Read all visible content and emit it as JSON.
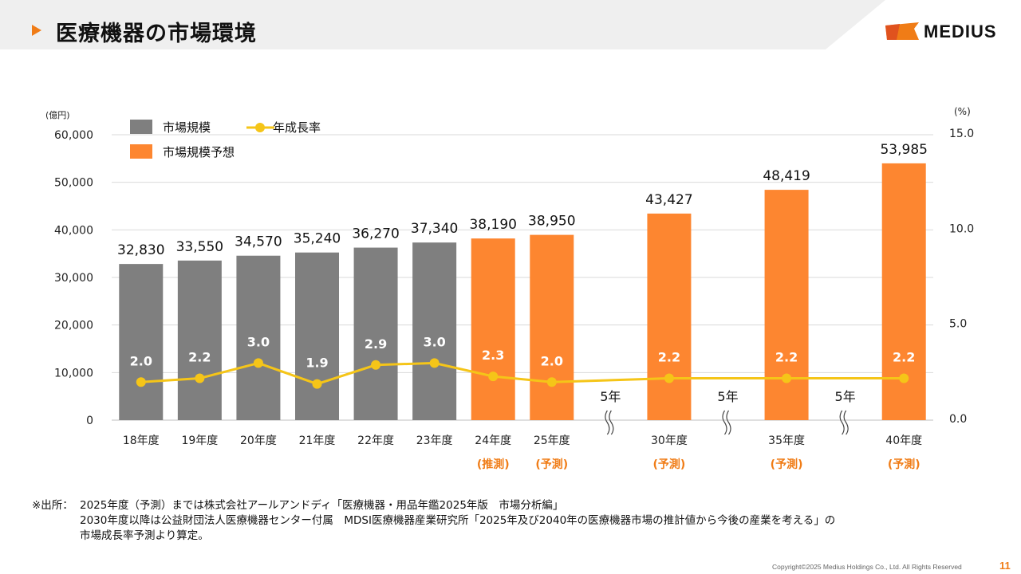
{
  "page": {
    "title": "医療機器の市場環境",
    "brand": "MEDIUS",
    "page_number": "11",
    "copyright": "Copyright©2025 Medius Holdings Co., Ltd. All Rights Reserved",
    "source_label": "※出所：",
    "source_lines": [
      "2025年度（予測）までは株式会社アールアンドディ「医療機器・用品年鑑2025年版　市場分析編」",
      "2030年度以降は公益財団法人医療機器センター付属　MDSI医療機器産業研究所「2025年及び2040年の医療機器市場の推計値から今後の産業を考える」の",
      "市場成長率予測より算定。"
    ]
  },
  "colors": {
    "accent": "#f07c16",
    "actual_bar": "#7f7f7f",
    "forecast_bar": "#fd8630",
    "growth_line": "#f5c518",
    "grid": "#d9d9d9"
  },
  "chart_data": {
    "type": "bar",
    "left_axis_unit": "(億円)",
    "right_axis_unit": "(%)",
    "ylim": [
      0,
      60000
    ],
    "yticks": [
      "0",
      "10,000",
      "20,000",
      "30,000",
      "40,000",
      "50,000",
      "60,000"
    ],
    "y2lim": [
      0,
      15
    ],
    "y2ticks": [
      "0.0",
      "5.0",
      "10.0",
      "15.0"
    ],
    "grid": true,
    "legend_position": "top-left",
    "legend": {
      "actual": "市場規模",
      "growth": "年成長率",
      "forecast": "市場規模予想"
    },
    "categories": [
      {
        "label": "18年度",
        "value": 32830,
        "value_label": "32,830",
        "growth": 2.0,
        "growth_label": "2.0",
        "kind": "actual",
        "note": ""
      },
      {
        "label": "19年度",
        "value": 33550,
        "value_label": "33,550",
        "growth": 2.2,
        "growth_label": "2.2",
        "kind": "actual",
        "note": ""
      },
      {
        "label": "20年度",
        "value": 34570,
        "value_label": "34,570",
        "growth": 3.0,
        "growth_label": "3.0",
        "kind": "actual",
        "note": ""
      },
      {
        "label": "21年度",
        "value": 35240,
        "value_label": "35,240",
        "growth": 1.9,
        "growth_label": "1.9",
        "kind": "actual",
        "note": ""
      },
      {
        "label": "22年度",
        "value": 36270,
        "value_label": "36,270",
        "growth": 2.9,
        "growth_label": "2.9",
        "kind": "actual",
        "note": ""
      },
      {
        "label": "23年度",
        "value": 37340,
        "value_label": "37,340",
        "growth": 3.0,
        "growth_label": "3.0",
        "kind": "actual",
        "note": ""
      },
      {
        "label": "24年度",
        "value": 38190,
        "value_label": "38,190",
        "growth": 2.3,
        "growth_label": "2.3",
        "kind": "forecast",
        "note": "(推測)"
      },
      {
        "label": "25年度",
        "value": 38950,
        "value_label": "38,950",
        "growth": 2.0,
        "growth_label": "2.0",
        "kind": "forecast",
        "note": "(予測)"
      },
      {
        "label": "",
        "gap": true,
        "gap_label": "5年"
      },
      {
        "label": "30年度",
        "value": 43427,
        "value_label": "43,427",
        "growth": 2.2,
        "growth_label": "2.2",
        "kind": "forecast",
        "note": "(予測)"
      },
      {
        "label": "",
        "gap": true,
        "gap_label": "5年"
      },
      {
        "label": "35年度",
        "value": 48419,
        "value_label": "48,419",
        "growth": 2.2,
        "growth_label": "2.2",
        "kind": "forecast",
        "note": "(予測)"
      },
      {
        "label": "",
        "gap": true,
        "gap_label": "5年"
      },
      {
        "label": "40年度",
        "value": 53985,
        "value_label": "53,985",
        "growth": 2.2,
        "growth_label": "2.2",
        "kind": "forecast",
        "note": "(予測)"
      }
    ]
  }
}
